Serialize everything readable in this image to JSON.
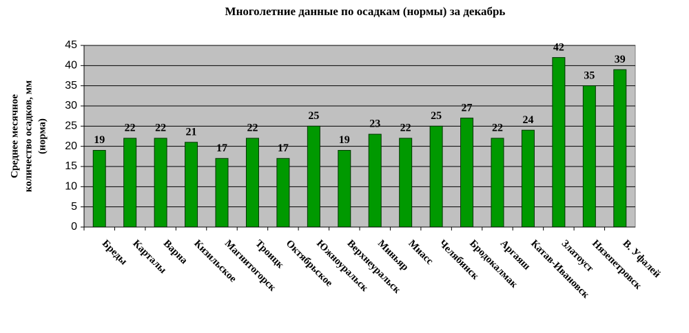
{
  "chart_data": {
    "type": "bar",
    "title": "Многолетние данные по осадкам (нормы) за декабрь",
    "ylabel": [
      "Среднее месячное",
      "количество осадков, мм",
      "(норма)"
    ],
    "categories": [
      "Бреды",
      "Карталы",
      "Варна",
      "Кизильское",
      "Магнитогорск",
      "Троицк",
      "Октябрьское",
      "Южноуральск",
      "Верхнеуральск",
      "Миньяр",
      "Миасс",
      "Челябинск",
      "Бродокалмак",
      "Аргаяш",
      "Катав-Ивановск",
      "Златоуст",
      "Нязепетровск",
      "В. Уфалей"
    ],
    "values": [
      19,
      22,
      22,
      21,
      17,
      22,
      17,
      25,
      19,
      23,
      22,
      25,
      27,
      22,
      24,
      42,
      35,
      39
    ],
    "color": "#009900",
    "ylim": [
      0,
      45
    ],
    "yticks": [
      0,
      5,
      10,
      15,
      20,
      25,
      30,
      35,
      40,
      45
    ],
    "grid": true
  }
}
